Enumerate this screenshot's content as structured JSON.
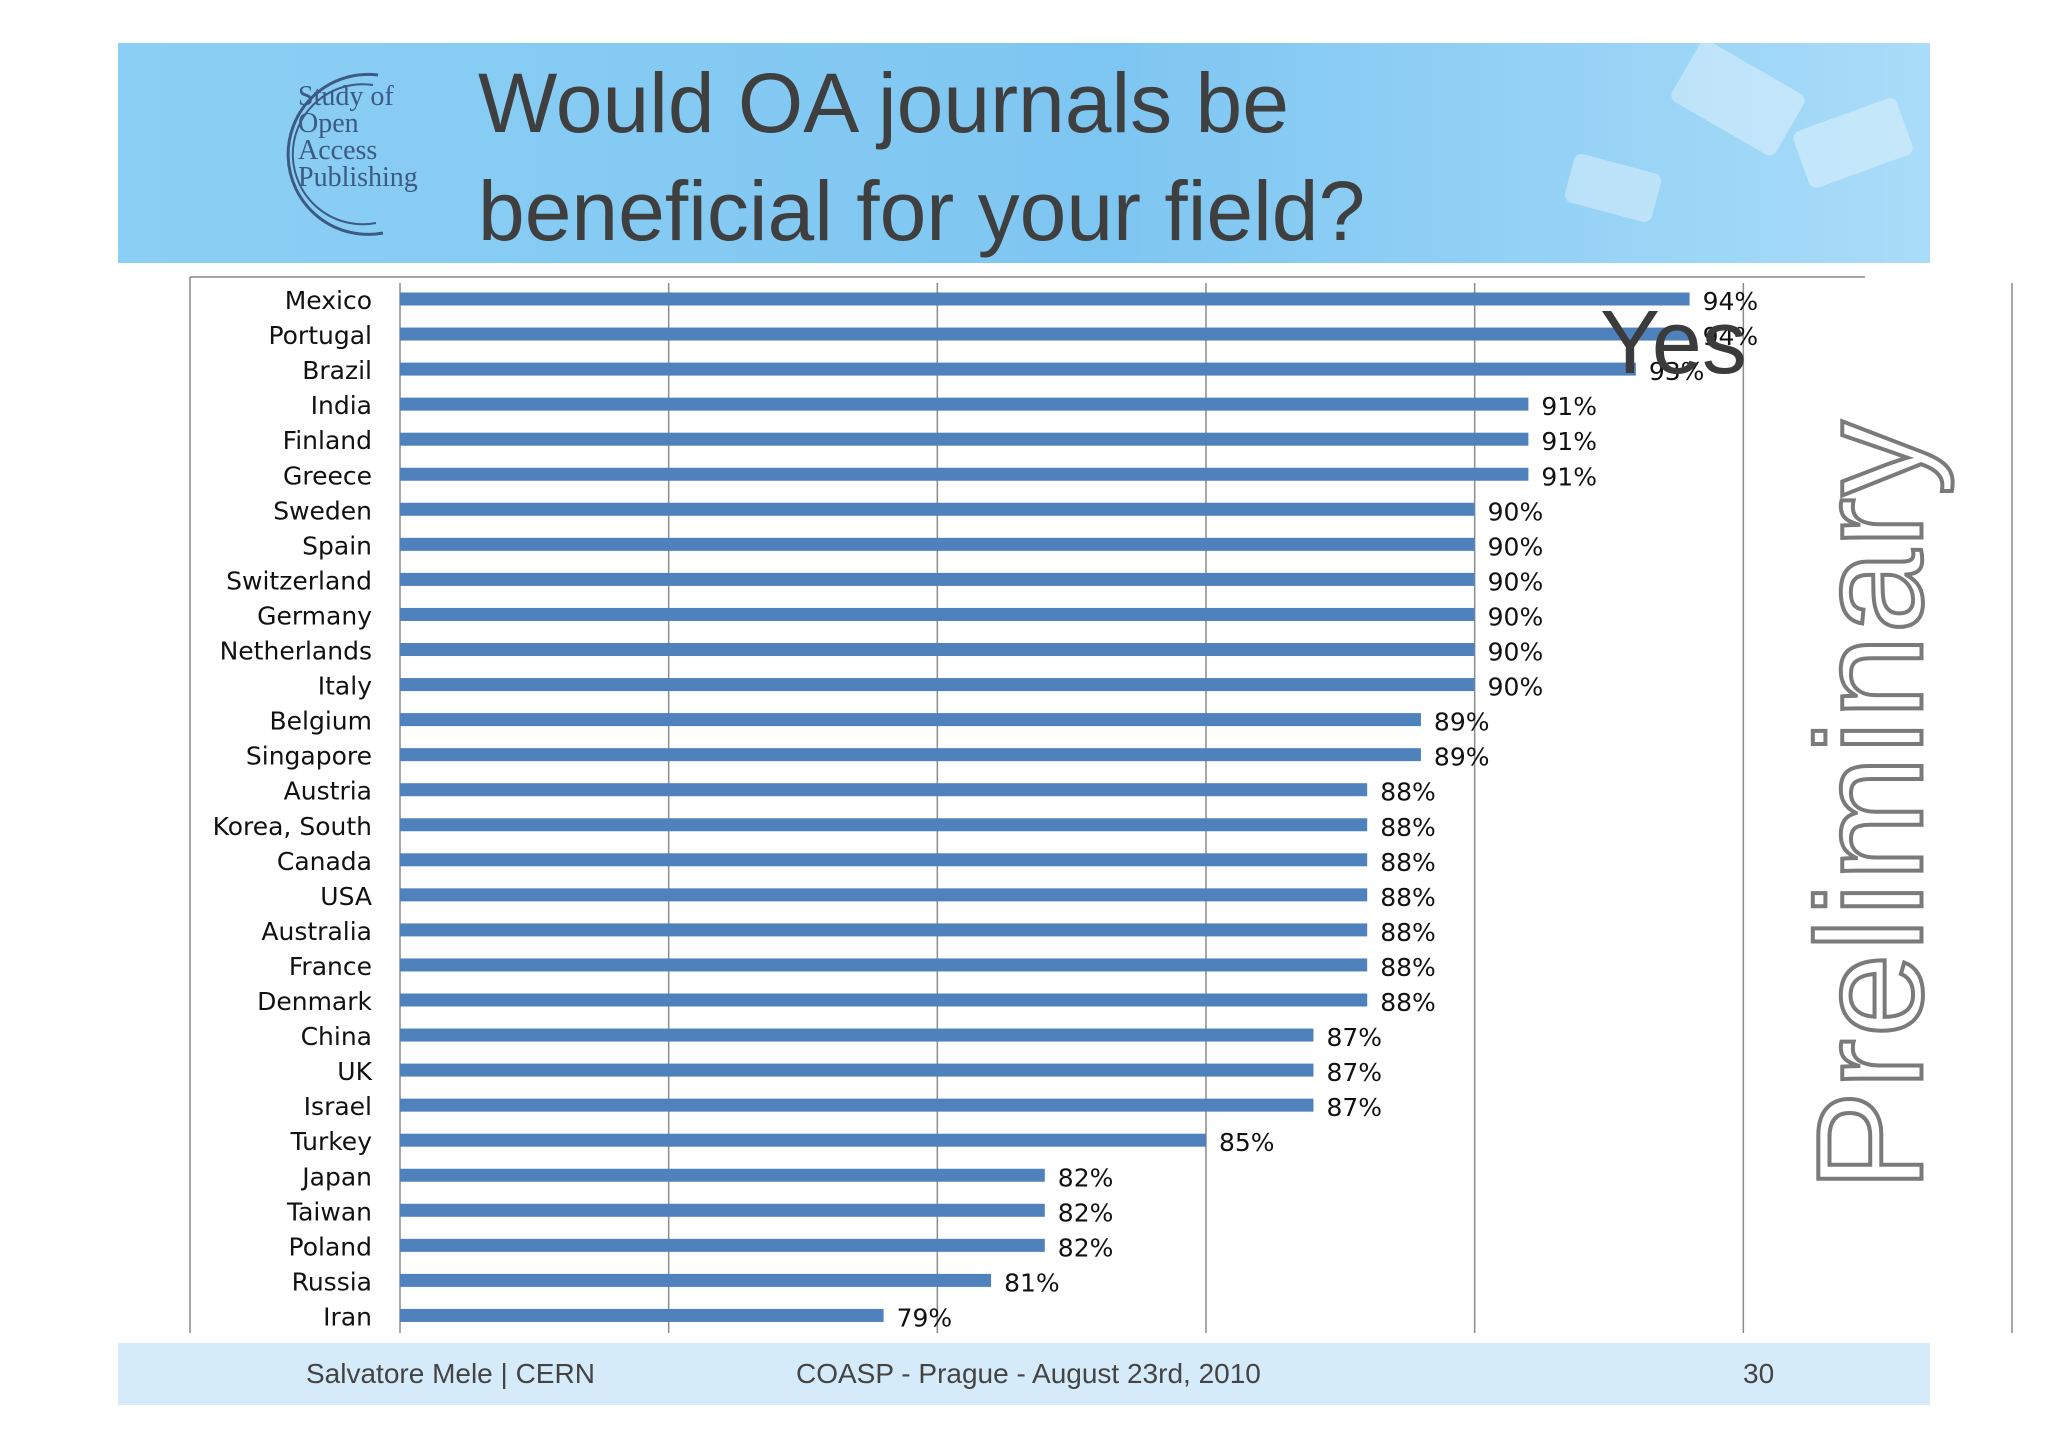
{
  "slide": {
    "title_line1": "Would OA journals be",
    "title_line2": "beneficial for your field?",
    "side_label": "Yes",
    "watermark": "Preliminary"
  },
  "logo": {
    "line1": "Study of",
    "line2": "Open",
    "line3": "Access",
    "line4": "Publishing"
  },
  "footer": {
    "author": "Salvatore Mele | CERN",
    "event": "COASP - Prague - August 23rd, 2010",
    "page": "30"
  },
  "colors": {
    "bar": "#4f81bd",
    "header": "#8ccff4",
    "footer": "#d6ebfa"
  },
  "chart_data": {
    "type": "bar",
    "orientation": "horizontal",
    "categories": [
      "Mexico",
      "Portugal",
      "Brazil",
      "India",
      "Finland",
      "Greece",
      "Sweden",
      "Spain",
      "Switzerland",
      "Germany",
      "Netherlands",
      "Italy",
      "Belgium",
      "Singapore",
      "Austria",
      "Korea, South",
      "Canada",
      "USA",
      "Australia",
      "France",
      "Denmark",
      "China",
      "UK",
      "Israel",
      "Turkey",
      "Japan",
      "Taiwan",
      "Poland",
      "Russia",
      "Iran"
    ],
    "values": [
      0.94,
      0.94,
      0.93,
      0.91,
      0.91,
      0.91,
      0.9,
      0.9,
      0.9,
      0.9,
      0.9,
      0.9,
      0.89,
      0.89,
      0.88,
      0.88,
      0.88,
      0.88,
      0.88,
      0.88,
      0.88,
      0.87,
      0.87,
      0.87,
      0.85,
      0.82,
      0.82,
      0.82,
      0.81,
      0.79
    ],
    "value_labels": [
      "94%",
      "94%",
      "93%",
      "91%",
      "91%",
      "91%",
      "90%",
      "90%",
      "90%",
      "90%",
      "90%",
      "90%",
      "89%",
      "89%",
      "88%",
      "88%",
      "88%",
      "88%",
      "88%",
      "88%",
      "88%",
      "87%",
      "87%",
      "87%",
      "85%",
      "82%",
      "82%",
      "82%",
      "81%",
      "79%"
    ],
    "xlim": [
      0.7,
      1.0
    ],
    "grid": true
  }
}
